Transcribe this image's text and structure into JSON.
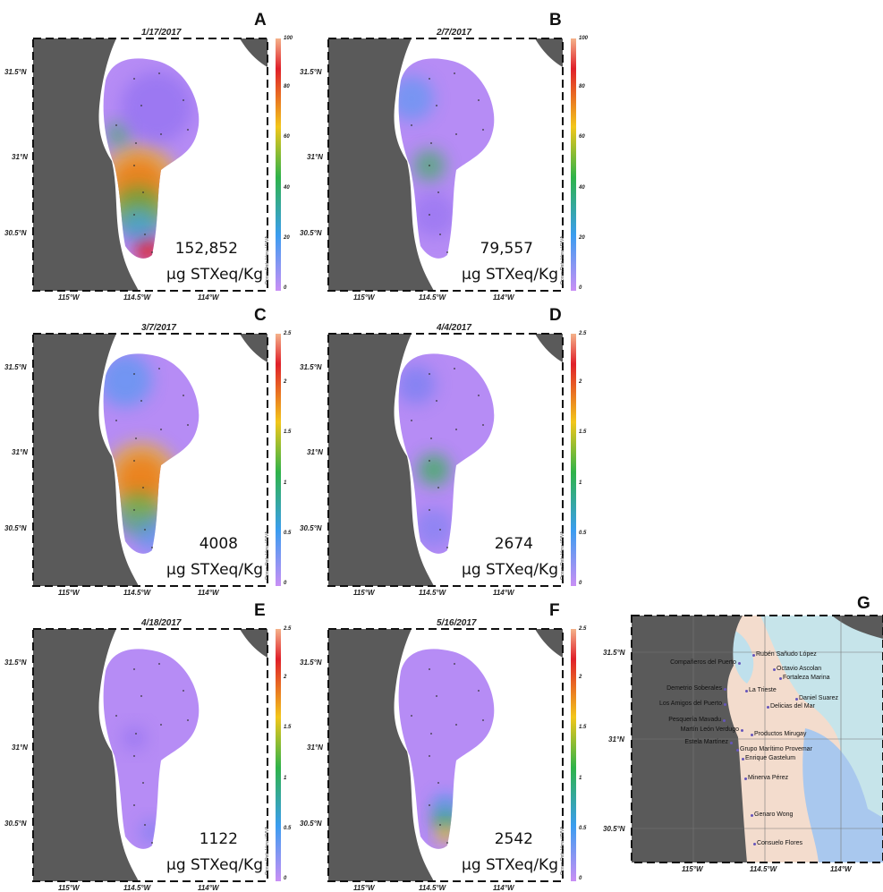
{
  "panels": [
    {
      "letter": "A",
      "date": "1/17/2017",
      "value": "152,852",
      "unit": "µg STXeq/Kg",
      "scale_max": "100",
      "scale_ticks": [
        "100",
        "80",
        "60",
        "40",
        "20",
        "0"
      ]
    },
    {
      "letter": "B",
      "date": "2/7/2017",
      "value": "79,557",
      "unit": "µg STXeq/Kg",
      "scale_max": "100",
      "scale_ticks": [
        "100",
        "80",
        "60",
        "40",
        "20",
        "0"
      ]
    },
    {
      "letter": "C",
      "date": "3/7/2017",
      "value": "4008",
      "unit": "µg STXeq/Kg",
      "scale_max": "2.5",
      "scale_ticks": [
        "2.5",
        "2",
        "1.5",
        "1",
        "0.5",
        "0"
      ]
    },
    {
      "letter": "D",
      "date": "4/4/2017",
      "value": "2674",
      "unit": "µg STXeq/Kg",
      "scale_max": "2.5",
      "scale_ticks": [
        "2.5",
        "2",
        "1.5",
        "1",
        "0.5",
        "0"
      ]
    },
    {
      "letter": "E",
      "date": "4/18/2017",
      "value": "1122",
      "unit": "µg STXeq/Kg",
      "scale_max": "2.5",
      "scale_ticks": [
        "2.5",
        "2",
        "1.5",
        "1",
        "0.5",
        "0"
      ]
    },
    {
      "letter": "F",
      "date": "5/16/2017",
      "value": "2542",
      "unit": "µg STXeq/Kg",
      "scale_max": "2.5",
      "scale_ticks": [
        "2.5",
        "2",
        "1.5",
        "1",
        "0.5",
        "0"
      ]
    }
  ],
  "axes": {
    "y_ticks": [
      "31.5°N",
      "31°N",
      "30.5°N"
    ],
    "x_ticks": [
      "115°W",
      "114.5°W",
      "114°W"
    ]
  },
  "odv_credit": "Ocean Data View / DIVA",
  "panelG": {
    "letter": "G",
    "y_ticks": [
      "31.5°N",
      "31°N",
      "30.5°N"
    ],
    "x_ticks": [
      "115°W",
      "114.5°W",
      "114°W"
    ],
    "stations": [
      "Rubén Sañudo López",
      "Compañeros del Puerto",
      "Octavio Ascolan",
      "Fortaleza Marina",
      "Demetrio Soberales",
      "La Trieste",
      "Daniel Suarez",
      "Los Amigos del Puerto",
      "Delicias del Mar",
      "Pesquería Mavadu",
      "Martín León Verdugo",
      "Productos Mirugay",
      "Estela Martínez",
      "Grupo Marítimo Provemar",
      "Enrique Gastelum",
      "Minerva Pérez",
      "Genaro Wong",
      "Consuelo Flores"
    ]
  },
  "colors": {
    "land": "#5a5a5a",
    "scale_top": "#f4b28a",
    "scale_red": "#e0202a",
    "scale_yellow": "#f2c61a",
    "scale_green": "#2fb34a",
    "scale_blue": "#3b9df0",
    "scale_violet": "#c98ff5"
  }
}
